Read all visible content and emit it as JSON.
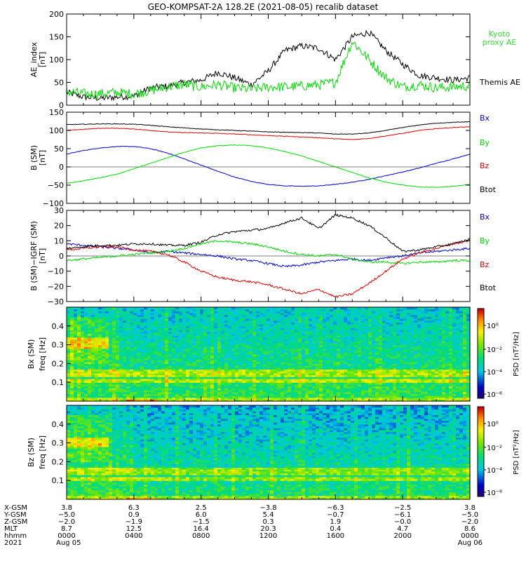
{
  "title": "GEO-KOMPSAT-2A 128.2E (2021-08-05) recalib dataset",
  "colors": {
    "black": "#000000",
    "red": "#e00000",
    "green": "#00dd00",
    "blue": "#0000cc",
    "legend_green": "#33dd33"
  },
  "chart_data": [
    {
      "type": "line",
      "panel": "ae",
      "ylabel": "AE_index",
      "yunit": "[nT]",
      "ylim": [
        0,
        200
      ],
      "yticks": [
        "0",
        "50",
        "100",
        "150",
        "200"
      ],
      "x_hours": [
        0,
        1,
        2,
        3,
        4,
        5,
        6,
        7,
        8,
        9,
        10,
        11,
        12,
        13,
        14,
        15,
        16,
        17,
        18,
        19,
        20,
        21,
        22,
        23,
        24
      ],
      "series": [
        {
          "name": "Themis AE",
          "color": "#000000",
          "values": [
            28,
            18,
            15,
            18,
            20,
            38,
            42,
            50,
            55,
            72,
            60,
            45,
            75,
            120,
            130,
            125,
            100,
            150,
            160,
            120,
            90,
            65,
            60,
            55,
            60
          ]
        },
        {
          "name": "Kyoto proxy AE",
          "label_lines": [
            "Kyoto",
            "proxy AE"
          ],
          "color": "#00dd00",
          "values": [
            30,
            25,
            25,
            28,
            25,
            32,
            40,
            45,
            40,
            45,
            38,
            35,
            40,
            40,
            42,
            45,
            50,
            140,
            100,
            60,
            40,
            45,
            38,
            40,
            42
          ]
        }
      ]
    },
    {
      "type": "line",
      "panel": "bfield",
      "ylabel": "B (SM)",
      "yunit": "[nT]",
      "ylim": [
        -100,
        150
      ],
      "yticks": [
        "−100",
        "−50",
        "0",
        "50",
        "100",
        "150"
      ],
      "x_hours": [
        0,
        1,
        2,
        3,
        4,
        5,
        6,
        7,
        8,
        9,
        10,
        11,
        12,
        13,
        14,
        15,
        16,
        17,
        18,
        19,
        20,
        21,
        22,
        23,
        24
      ],
      "series": [
        {
          "name": "Bx",
          "color": "#0000cc",
          "values": [
            35,
            45,
            52,
            56,
            56,
            50,
            38,
            22,
            5,
            -12,
            -28,
            -40,
            -48,
            -52,
            -53,
            -52,
            -48,
            -42,
            -34,
            -24,
            -14,
            -3,
            10,
            22,
            35
          ]
        },
        {
          "name": "By",
          "color": "#00dd00",
          "values": [
            -45,
            -38,
            -30,
            -20,
            -5,
            10,
            25,
            40,
            52,
            58,
            60,
            58,
            52,
            42,
            30,
            15,
            0,
            -15,
            -30,
            -42,
            -50,
            -55,
            -56,
            -53,
            -48
          ]
        },
        {
          "name": "Bz",
          "color": "#e00000",
          "values": [
            100,
            103,
            106,
            106,
            104,
            100,
            96,
            94,
            93,
            92,
            90,
            88,
            86,
            84,
            82,
            80,
            77,
            75,
            78,
            85,
            92,
            100,
            105,
            108,
            110
          ]
        },
        {
          "name": "Btot",
          "color": "#000000",
          "values": [
            116,
            117,
            118,
            118,
            117,
            114,
            110,
            107,
            104,
            102,
            100,
            98,
            96,
            95,
            94,
            93,
            90,
            90,
            93,
            100,
            108,
            115,
            120,
            122,
            124
          ]
        }
      ]
    },
    {
      "type": "line",
      "panel": "residual",
      "ylabel": "B (SM)−IGRF (SM)",
      "yunit": "[nT]",
      "ylim": [
        -30,
        30
      ],
      "yticks": [
        "−30",
        "−20",
        "−10",
        "0",
        "10",
        "20",
        "30"
      ],
      "x_hours": [
        0,
        1,
        2,
        3,
        4,
        5,
        6,
        7,
        8,
        9,
        10,
        11,
        12,
        13,
        14,
        15,
        16,
        17,
        18,
        19,
        20,
        21,
        22,
        23,
        24
      ],
      "series": [
        {
          "name": "Bx",
          "color": "#0000cc",
          "values": [
            8,
            7,
            6,
            5,
            4,
            2,
            3,
            2,
            1,
            0,
            -2,
            -3,
            -5,
            -7,
            -6,
            -4,
            -3,
            -2,
            -3,
            -1,
            0,
            2,
            3,
            4,
            5
          ]
        },
        {
          "name": "By",
          "color": "#00dd00",
          "values": [
            -3,
            -2,
            -1,
            0,
            1,
            2,
            3,
            5,
            8,
            10,
            9,
            8,
            6,
            3,
            1,
            0,
            1,
            -2,
            -4,
            -4,
            -5,
            -4,
            -4,
            -3,
            -3
          ]
        },
        {
          "name": "Bz",
          "color": "#e00000",
          "values": [
            4,
            5,
            6,
            6,
            4,
            3,
            1,
            -4,
            -10,
            -14,
            -16,
            -17,
            -19,
            -22,
            -25,
            -22,
            -27,
            -25,
            -18,
            -10,
            -2,
            2,
            5,
            8,
            10
          ]
        },
        {
          "name": "Btot",
          "color": "#000000",
          "values": [
            5,
            6,
            7,
            7,
            8,
            8,
            7,
            7,
            9,
            14,
            16,
            17,
            18,
            22,
            25,
            18,
            27,
            25,
            20,
            12,
            3,
            4,
            6,
            8,
            11
          ]
        }
      ]
    },
    {
      "type": "heatmap",
      "panel": "spec_bx",
      "ylabel": "Bx (SM)",
      "freq_label": "freq [Hz]",
      "ylim": [
        0,
        0.5
      ],
      "yticks": [
        "0.1",
        "0.2",
        "0.3",
        "0.4"
      ],
      "colorbar": {
        "label": "PSD [nT²/Hz]",
        "ticks": [
          "10⁰",
          "10⁻²",
          "10⁻⁴",
          "10⁻⁶"
        ]
      },
      "bands_hz": [
        0.105,
        0.115,
        0.135,
        0.15,
        0.165
      ],
      "enhancement": {
        "hours": [
          0,
          2.5
        ],
        "freq_hz": [
          0.28,
          0.34
        ]
      }
    },
    {
      "type": "heatmap",
      "panel": "spec_bz",
      "ylabel": "Bz (SM)",
      "freq_label": "freq [Hz]",
      "ylim": [
        0,
        0.5
      ],
      "yticks": [
        "0.1",
        "0.2",
        "0.3",
        "0.4"
      ],
      "colorbar": {
        "label": "PSD [nT²/Hz]",
        "ticks": [
          "10⁰",
          "10⁻²",
          "10⁻⁴",
          "10⁻⁶"
        ]
      },
      "bands_hz": [
        0.105,
        0.115,
        0.135,
        0.15,
        0.165
      ],
      "enhancement": {
        "hours": [
          0,
          2.5
        ],
        "freq_hz": [
          0.28,
          0.33
        ]
      }
    }
  ],
  "ephemeris": {
    "rows": [
      {
        "label": "X-GSM",
        "values": [
          "3.8",
          "6.3",
          "2.5",
          "−3.8",
          "−6.3",
          "−2.5",
          "3.8"
        ]
      },
      {
        "label": "Y-GSM",
        "values": [
          "−5.0",
          "0.9",
          "6.0",
          "5.4",
          "−0.7",
          "−6.1",
          "−5.0"
        ]
      },
      {
        "label": "Z-GSM",
        "values": [
          "−2.0",
          "−1.9",
          "−1.5",
          "0.3",
          "1.9",
          "−0.0",
          "−2.0"
        ]
      },
      {
        "label": "MLT",
        "values": [
          "8.7",
          "12.5",
          "16.4",
          "20.3",
          "0.4",
          "4.7",
          "8.6"
        ]
      },
      {
        "label": "hhmm",
        "values": [
          "0000",
          "0400",
          "0800",
          "1200",
          "1600",
          "2000",
          "0000"
        ]
      },
      {
        "label": "2021",
        "values": [
          "Aug 05",
          "",
          "",
          "",
          "",
          "",
          "Aug 06"
        ]
      }
    ]
  }
}
